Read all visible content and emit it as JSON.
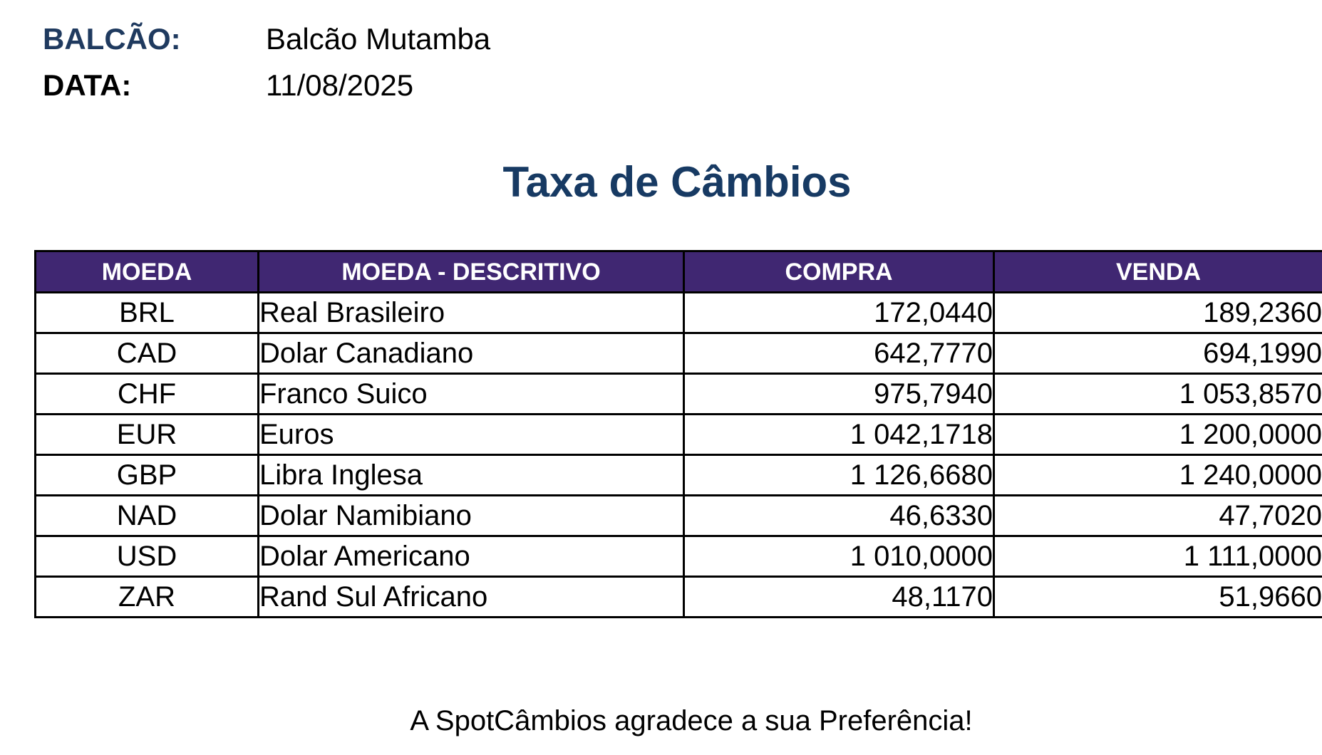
{
  "colors": {
    "label_blue": "#1f3a5f",
    "title_blue": "#173a63",
    "header_bg": "#402772",
    "header_text": "#ffffff",
    "border": "#000000"
  },
  "info": {
    "balcao_label": "BALCÃO:",
    "balcao_value": "Balcão Mutamba",
    "data_label": "DATA:",
    "data_value": "11/08/2025"
  },
  "title": "Taxa de Câmbios",
  "table": {
    "headers": [
      "MOEDA",
      "MOEDA - DESCRITIVO",
      "COMPRA",
      "VENDA"
    ],
    "rows": [
      {
        "code": "BRL",
        "desc": "Real Brasileiro",
        "compra": "172,0440",
        "venda": "189,2360"
      },
      {
        "code": "CAD",
        "desc": "Dolar Canadiano",
        "compra": "642,7770",
        "venda": "694,1990"
      },
      {
        "code": "CHF",
        "desc": "Franco Suico",
        "compra": "975,7940",
        "venda": "1 053,8570"
      },
      {
        "code": "EUR",
        "desc": "Euros",
        "compra": "1 042,1718",
        "venda": "1 200,0000"
      },
      {
        "code": "GBP",
        "desc": "Libra Inglesa",
        "compra": "1 126,6680",
        "venda": "1 240,0000"
      },
      {
        "code": "NAD",
        "desc": "Dolar Namibiano",
        "compra": "46,6330",
        "venda": "47,7020"
      },
      {
        "code": "USD",
        "desc": "Dolar Americano",
        "compra": "1 010,0000",
        "venda": "1 111,0000"
      },
      {
        "code": "ZAR",
        "desc": "Rand Sul Africano",
        "compra": "48,1170",
        "venda": "51,9660"
      }
    ]
  },
  "footer": "A SpotCâmbios agradece a sua Preferência!"
}
